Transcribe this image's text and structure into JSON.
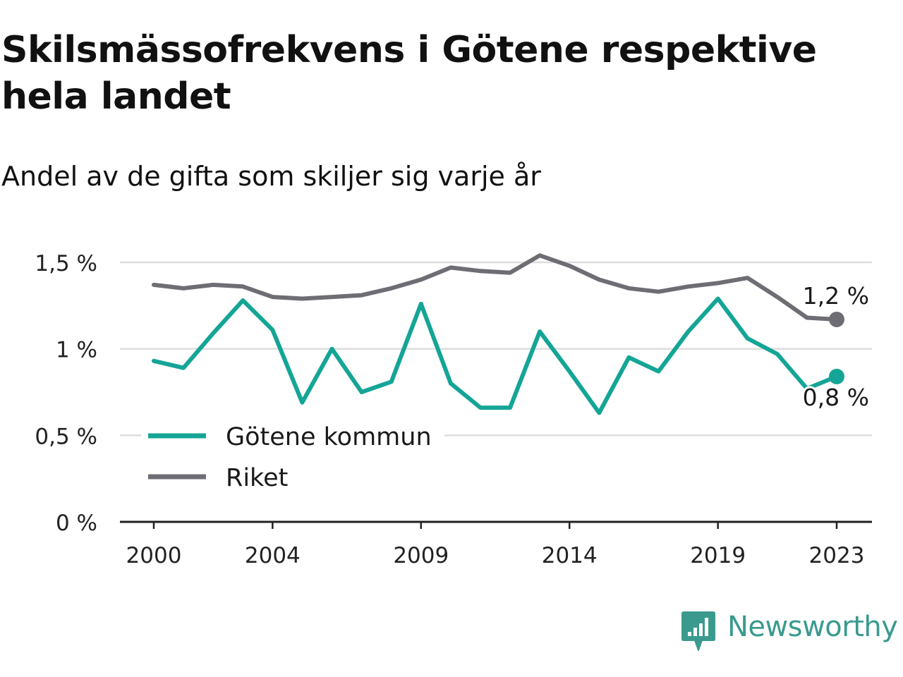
{
  "title": "Skilsmässofrekvens i Götene respektive hela landet",
  "subtitle": "Andel av de gifta som skiljer sig varje år",
  "brand": "Newsworthy",
  "colors": {
    "gotene": "#14a596",
    "riket": "#6e6d74",
    "grid": "#dddddd",
    "axis": "#222222",
    "brand": "#3a9a8e"
  },
  "chart_data": {
    "type": "line",
    "x": [
      2000,
      2001,
      2002,
      2003,
      2004,
      2005,
      2006,
      2007,
      2008,
      2009,
      2010,
      2011,
      2012,
      2013,
      2014,
      2015,
      2016,
      2017,
      2018,
      2019,
      2020,
      2021,
      2022,
      2023
    ],
    "series": [
      {
        "name": "Götene kommun",
        "color": "#14a596",
        "values": [
          0.93,
          0.89,
          1.09,
          1.28,
          1.11,
          0.69,
          1.0,
          0.75,
          0.81,
          1.26,
          0.8,
          0.66,
          0.66,
          1.1,
          0.87,
          0.63,
          0.95,
          0.87,
          1.1,
          1.29,
          1.06,
          0.97,
          0.77,
          0.84
        ],
        "end_label": "0,8 %"
      },
      {
        "name": "Riket",
        "color": "#6e6d74",
        "values": [
          1.37,
          1.35,
          1.37,
          1.36,
          1.3,
          1.29,
          1.3,
          1.31,
          1.35,
          1.4,
          1.47,
          1.45,
          1.44,
          1.54,
          1.48,
          1.4,
          1.35,
          1.33,
          1.36,
          1.38,
          1.41,
          1.3,
          1.18,
          1.17
        ],
        "end_label": "1,2 %"
      }
    ],
    "y_ticks": [
      {
        "value": 0,
        "label": "0 %"
      },
      {
        "value": 0.5,
        "label": "0,5 %"
      },
      {
        "value": 1,
        "label": "1 %"
      },
      {
        "value": 1.5,
        "label": "1,5 %"
      }
    ],
    "x_ticks": [
      {
        "value": 2000,
        "label": "2000"
      },
      {
        "value": 2004,
        "label": "2004"
      },
      {
        "value": 2009,
        "label": "2009"
      },
      {
        "value": 2014,
        "label": "2014"
      },
      {
        "value": 2019,
        "label": "2019"
      },
      {
        "value": 2023,
        "label": "2023"
      }
    ],
    "ylim": [
      0,
      1.5
    ],
    "xlim": [
      2000,
      2023
    ],
    "legend": {
      "placement": "bottom-left"
    },
    "grid": "horizontal"
  }
}
